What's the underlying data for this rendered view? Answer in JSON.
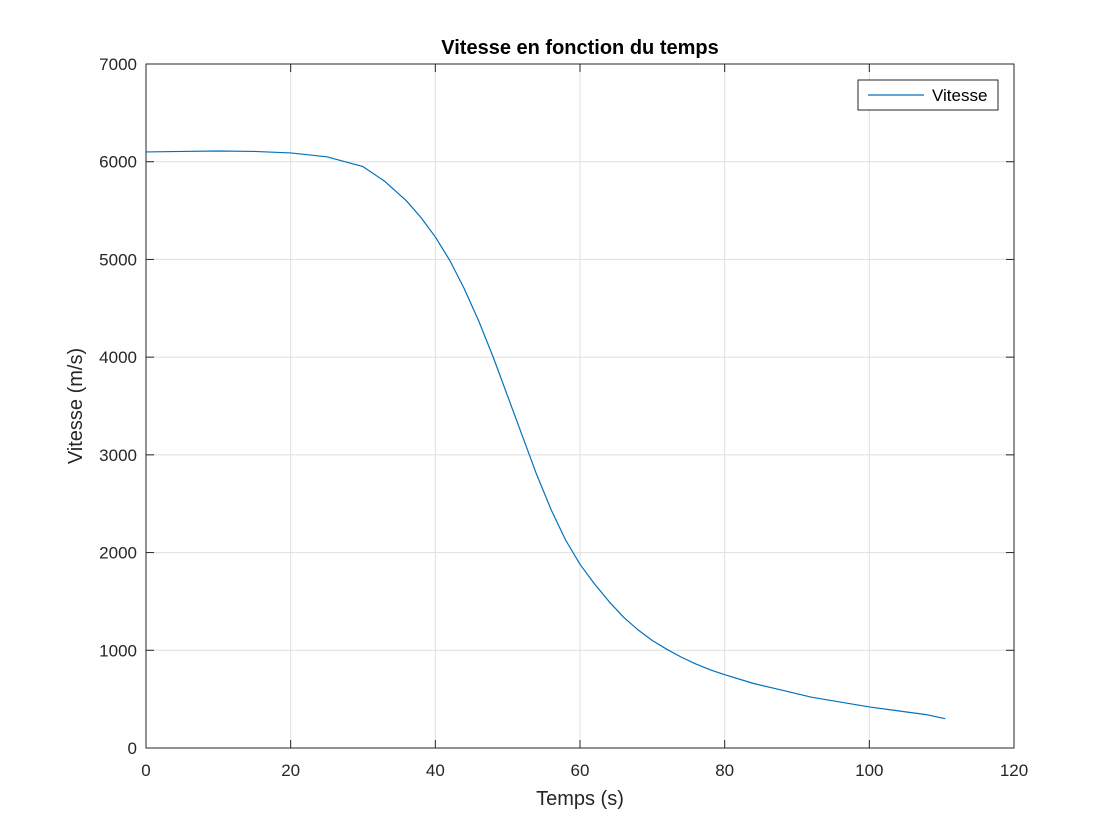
{
  "chart_data": {
    "type": "line",
    "title": "Vitesse en fonction du temps",
    "xlabel": "Temps (s)",
    "ylabel": "Vitesse (m/s)",
    "xlim": [
      0,
      120
    ],
    "ylim": [
      0,
      7000
    ],
    "xticks": [
      0,
      20,
      40,
      60,
      80,
      100,
      120
    ],
    "yticks": [
      0,
      1000,
      2000,
      3000,
      4000,
      5000,
      6000,
      7000
    ],
    "grid": true,
    "legend_position": "top-right",
    "colors": {
      "series": "#0072bd",
      "axis": "#262626",
      "grid": "#dfdfdf"
    },
    "series": [
      {
        "name": "Vitesse",
        "x": [
          0,
          5,
          10,
          15,
          20,
          25,
          30,
          33,
          36,
          38,
          40,
          42,
          44,
          46,
          48,
          50,
          52,
          54,
          56,
          58,
          60,
          62,
          64,
          66,
          68,
          70,
          72,
          74,
          76,
          78,
          80,
          84,
          88,
          92,
          96,
          100,
          104,
          108,
          110.5
        ],
        "y": [
          6100,
          6105,
          6110,
          6105,
          6090,
          6050,
          5950,
          5800,
          5600,
          5430,
          5230,
          4990,
          4700,
          4370,
          4000,
          3600,
          3200,
          2800,
          2440,
          2130,
          1880,
          1680,
          1500,
          1340,
          1210,
          1100,
          1010,
          930,
          860,
          800,
          750,
          660,
          590,
          520,
          470,
          420,
          380,
          340,
          300
        ]
      }
    ]
  }
}
